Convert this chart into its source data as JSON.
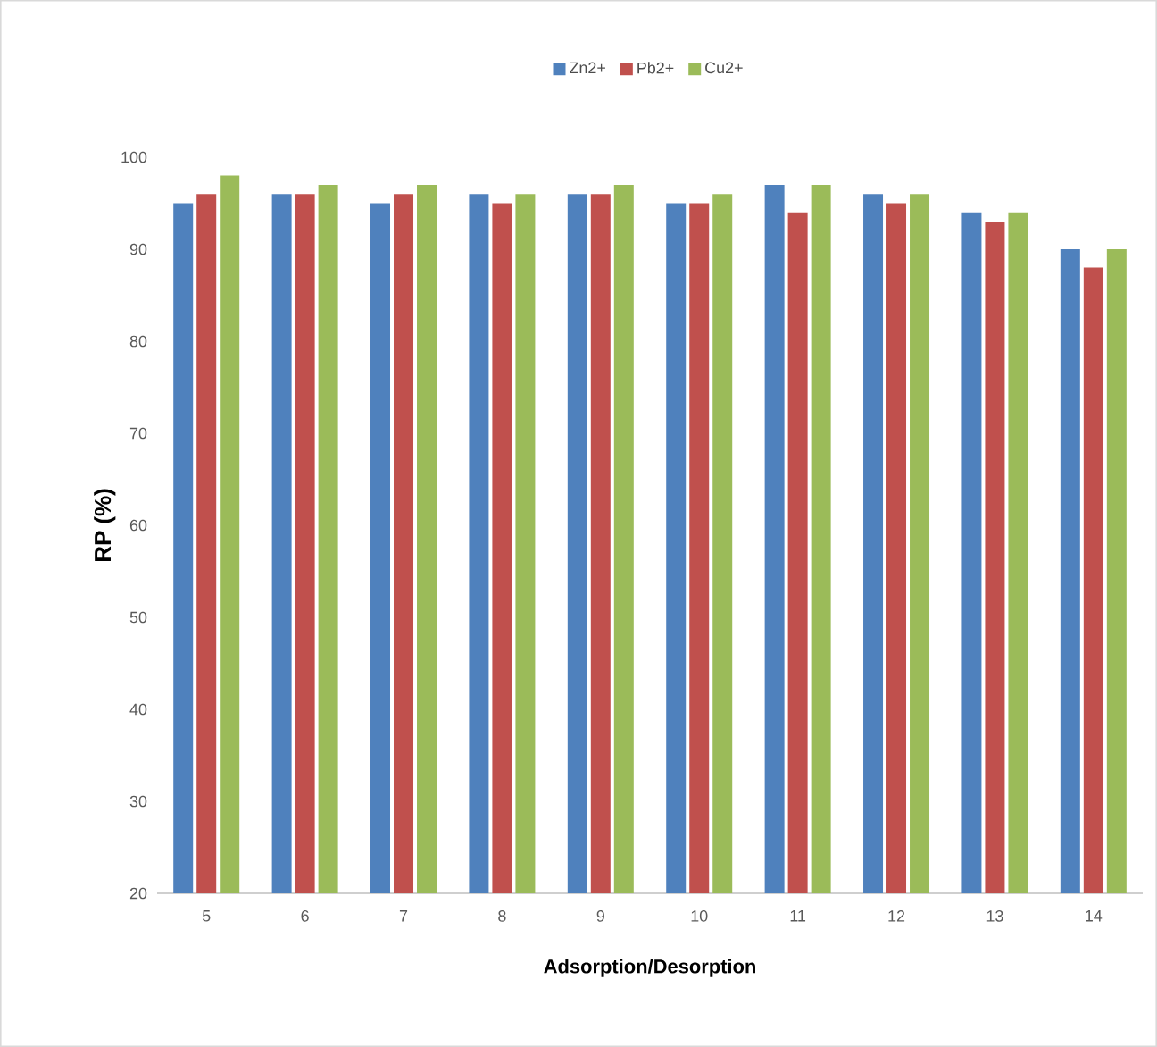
{
  "chart_data": {
    "type": "bar",
    "xlabel": "Adsorption/Desorption",
    "ylabel": "RP (%)",
    "categories": [
      "5",
      "6",
      "7",
      "8",
      "9",
      "10",
      "11",
      "12",
      "13",
      "14"
    ],
    "series": [
      {
        "name": "Zn2+",
        "color": "#4f81bd",
        "values": [
          95,
          96,
          95,
          96,
          96,
          95,
          97,
          96,
          94,
          90
        ]
      },
      {
        "name": "Pb2+",
        "color": "#c0504d",
        "values": [
          96,
          96,
          96,
          95,
          96,
          95,
          94,
          95,
          93,
          88
        ]
      },
      {
        "name": "Cu2+",
        "color": "#9bbb59",
        "values": [
          98,
          97,
          97,
          96,
          97,
          96,
          97,
          96,
          94,
          90
        ]
      }
    ],
    "ylim": [
      20,
      100
    ],
    "yticks": [
      20,
      30,
      40,
      50,
      60,
      70,
      80,
      90,
      100
    ],
    "grid": false,
    "legend": "top"
  }
}
